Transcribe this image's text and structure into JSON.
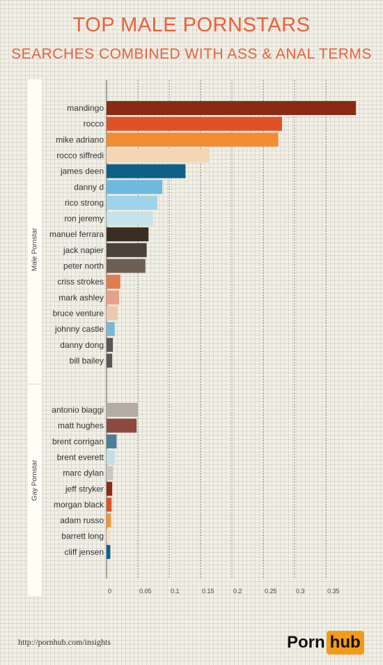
{
  "title": "TOP MALE PORNSTARS",
  "subtitle": "SEARCHES COMBINED WITH ASS & ANAL TERMS",
  "groups": {
    "male": "Male Pornstar",
    "gay": "Gay Pornstar"
  },
  "footer": {
    "url": "http://pornhub.com/insights",
    "logo_left": "Porn",
    "logo_right": "hub"
  },
  "chart_data": {
    "type": "bar",
    "orientation": "horizontal",
    "xlim": [
      0,
      0.4
    ],
    "xticks": [
      0,
      0.05,
      0.1,
      0.15,
      0.2,
      0.25,
      0.3,
      0.35
    ],
    "grid": true,
    "series": [
      {
        "name": "Male Pornstar",
        "categories": [
          "mandingo",
          "rocco",
          "mike adriano",
          "rocco siffredi",
          "james deen",
          "danny d",
          "rico strong",
          "ron jeremy",
          "manuel ferrara",
          "jack napier",
          "peter north",
          "criss strokes",
          "mark ashley",
          "bruce venture",
          "johnny castle",
          "danny dong",
          "bill bailey"
        ],
        "values": [
          0.398,
          0.28,
          0.274,
          0.164,
          0.126,
          0.089,
          0.081,
          0.074,
          0.067,
          0.064,
          0.062,
          0.022,
          0.02,
          0.018,
          0.013,
          0.01,
          0.009
        ],
        "colors": [
          "#8b2a12",
          "#df5228",
          "#f38c32",
          "#f6d6b2",
          "#0e6088",
          "#6fb9de",
          "#9fd3ea",
          "#c6e3e9",
          "#3a2e22",
          "#4c413d",
          "#6e5f55",
          "#df7d52",
          "#e6a08a",
          "#ecc8b0",
          "#78b8d4",
          "#5a5653",
          "#5a5653"
        ]
      },
      {
        "name": "Gay Pornstar",
        "categories": [
          "antonio biaggi",
          "matt hughes",
          "brent corrigan",
          "brent everett",
          "marc dylan",
          "jeff stryker",
          "morgan black",
          "adam russo",
          "barrett long",
          "cliff jensen"
        ],
        "values": [
          0.05,
          0.048,
          0.016,
          0.013,
          0.01,
          0.009,
          0.008,
          0.007,
          0.006,
          0.006
        ],
        "colors": [
          "#b3aca3",
          "#8b4a3d",
          "#4a7f99",
          "#c6dde4",
          "#cac6c1",
          "#8b2a12",
          "#df5228",
          "#f49436",
          "#f8dcc2",
          "#0e6088"
        ]
      }
    ]
  }
}
